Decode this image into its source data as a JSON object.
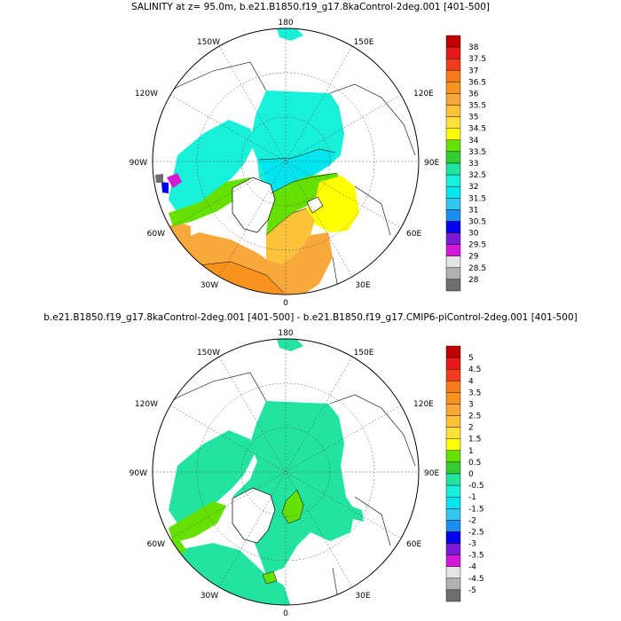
{
  "panels": [
    {
      "id": "top",
      "title": "SALINITY at z=  95.0m, b.e21.B1850.f19_g17.8kaControl-2deg.001 [401-500]",
      "lon_labels": {
        "n": "180",
        "nw": "150W",
        "ne": "150E",
        "wnw": "120W",
        "ene": "120E",
        "w": "90W",
        "e": "90E",
        "wsw": "60W",
        "ese": "60E",
        "sw": "30W",
        "se": "30E",
        "s": "0"
      },
      "colorbar": {
        "labels": [
          "38",
          "37.5",
          "37",
          "36.5",
          "36",
          "35.5",
          "35",
          "34.5",
          "34",
          "33.5",
          "33",
          "32.5",
          "32",
          "31.5",
          "31",
          "30.5",
          "30",
          "29.5",
          "29",
          "28.5",
          "28"
        ],
        "colors": [
          "#c00000",
          "#e41a1a",
          "#f53b1f",
          "#f77a1b",
          "#f8931d",
          "#f9a83b",
          "#fcc33a",
          "#fde23e",
          "#ffff00",
          "#66e000",
          "#33cc33",
          "#22e3a0",
          "#19f0d9",
          "#00e5ee",
          "#33c7f0",
          "#1f8cef",
          "#0000ee",
          "#7a1ad6",
          "#d219d6",
          "#e4e4e4",
          "#b0b0b0",
          "#6e6e6e"
        ]
      }
    },
    {
      "id": "bottom",
      "title": "b.e21.B1850.f19_g17.8kaControl-2deg.001 [401-500] - b.e21.B1850.f19_g17.CMIP6-piControl-2deg.001 [401-500]",
      "lon_labels": {
        "n": "180",
        "nw": "150W",
        "ne": "150E",
        "wnw": "120W",
        "ene": "120E",
        "w": "90W",
        "e": "90E",
        "wsw": "60W",
        "ese": "60E",
        "sw": "30W",
        "se": "30E",
        "s": "0"
      },
      "colorbar": {
        "labels": [
          "5",
          "4.5",
          "4",
          "3.5",
          "3",
          "2.5",
          "2",
          "1.5",
          "1",
          "0.5",
          "0",
          "-0.5",
          "-1",
          "-1.5",
          "-2",
          "-2.5",
          "-3",
          "-3.5",
          "-4",
          "-4.5",
          "-5"
        ],
        "colors": [
          "#c00000",
          "#e41a1a",
          "#f53b1f",
          "#f77a1b",
          "#f8931d",
          "#f9a83b",
          "#fcc33a",
          "#fde23e",
          "#ffff00",
          "#66e000",
          "#33cc33",
          "#22e3a0",
          "#19f0d9",
          "#00e5ee",
          "#33c7f0",
          "#1f8cef",
          "#0000ee",
          "#7a1ad6",
          "#d219d6",
          "#e4e4e4",
          "#b0b0b0",
          "#6e6e6e"
        ]
      }
    }
  ]
}
